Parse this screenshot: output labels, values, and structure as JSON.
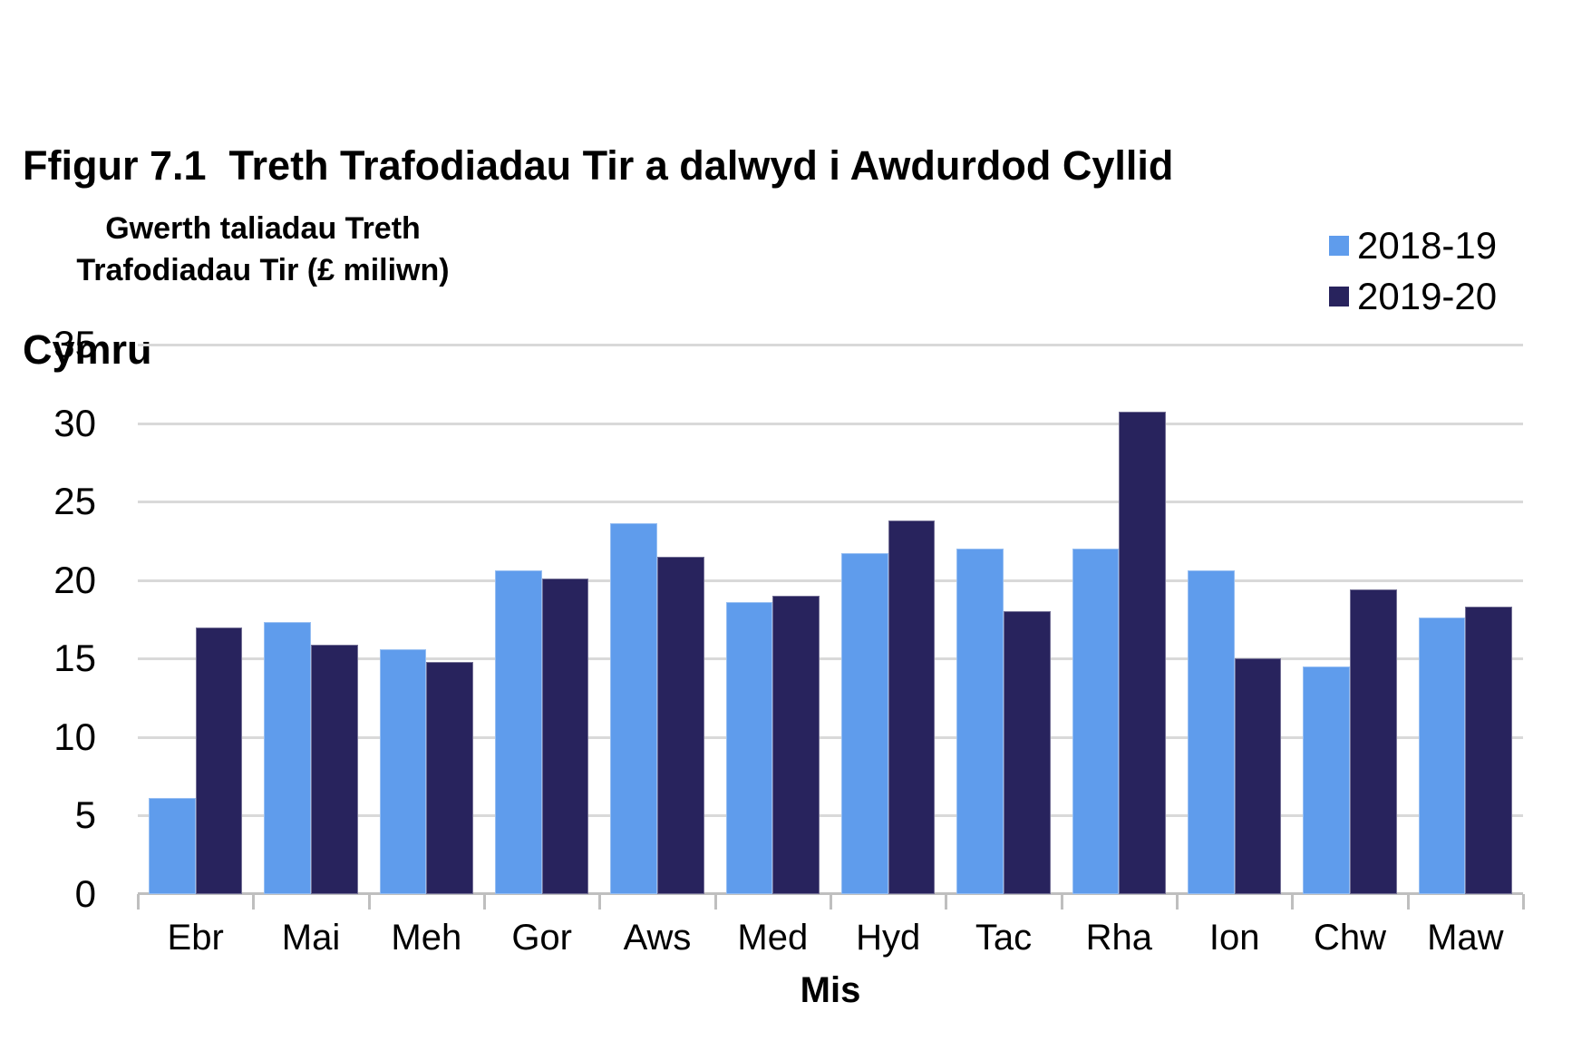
{
  "title_lines": [
    "Ffigur 7.1  Treth Trafodiadau Tir a dalwyd i Awdurdod Cyllid",
    "Cymru"
  ],
  "chart_data": {
    "type": "bar",
    "title": "Ffigur 7.1  Treth Trafodiadau Tir a dalwyd i Awdurdod Cyllid Cymru",
    "ylabel": "Gwerth taliadau Treth Trafodiadau Tir (£ miliwn)",
    "ylabel_lines": [
      "Gwerth taliadau Treth",
      "Trafodiadau Tir (£ miliwn)"
    ],
    "xlabel": "Mis",
    "categories": [
      "Ebr",
      "Mai",
      "Meh",
      "Gor",
      "Aws",
      "Med",
      "Hyd",
      "Tac",
      "Rha",
      "Ion",
      "Chw",
      "Maw"
    ],
    "series": [
      {
        "name": "2018-19",
        "color": "#5f9cec",
        "values": [
          6.1,
          17.3,
          15.6,
          20.6,
          23.6,
          18.6,
          21.7,
          22.0,
          22.0,
          20.6,
          14.5,
          17.6
        ]
      },
      {
        "name": "2019-20",
        "color": "#28235d",
        "values": [
          17.0,
          15.9,
          14.8,
          20.1,
          21.5,
          19.0,
          23.8,
          18.0,
          30.7,
          15.0,
          19.4,
          18.3
        ]
      }
    ],
    "ylim": [
      0,
      35
    ],
    "ytick_step": 5,
    "yticks": [
      "0",
      "5",
      "10",
      "15",
      "20",
      "25",
      "30",
      "35"
    ],
    "grid": true,
    "legend_position": "top-right",
    "colors": {
      "gridline": "#d9d9d9",
      "axis_line": "#bfbfbf",
      "text": "#000000",
      "background": "#ffffff"
    }
  }
}
